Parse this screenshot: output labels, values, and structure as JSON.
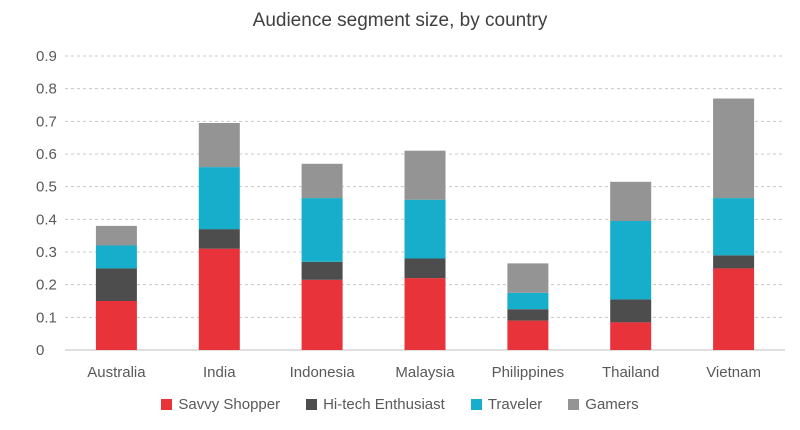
{
  "chart_data": {
    "type": "bar",
    "stacked": true,
    "title": "Audience segment size, by country",
    "xlabel": "",
    "ylabel": "",
    "ylim": [
      0,
      0.9
    ],
    "yticks": [
      "0",
      "0.1",
      "0.2",
      "0.3",
      "0.4",
      "0.5",
      "0.6",
      "0.7",
      "0.8",
      "0.9"
    ],
    "grid": true,
    "legend_position": "bottom",
    "categories": [
      "Australia",
      "India",
      "Indonesia",
      "Malaysia",
      "Philippines",
      "Thailand",
      "Vietnam"
    ],
    "series": [
      {
        "name": "Savvy Shopper",
        "color": "#e8333a",
        "values": [
          0.15,
          0.31,
          0.215,
          0.22,
          0.09,
          0.085,
          0.25
        ]
      },
      {
        "name": "Hi-tech Enthusiast",
        "color": "#4d4d4d",
        "values": [
          0.1,
          0.06,
          0.055,
          0.06,
          0.035,
          0.07,
          0.04
        ]
      },
      {
        "name": "Traveler",
        "color": "#16aecb",
        "values": [
          0.07,
          0.19,
          0.195,
          0.18,
          0.05,
          0.24,
          0.175
        ]
      },
      {
        "name": "Gamers",
        "color": "#949494",
        "values": [
          0.06,
          0.135,
          0.105,
          0.15,
          0.09,
          0.12,
          0.305
        ]
      }
    ]
  }
}
